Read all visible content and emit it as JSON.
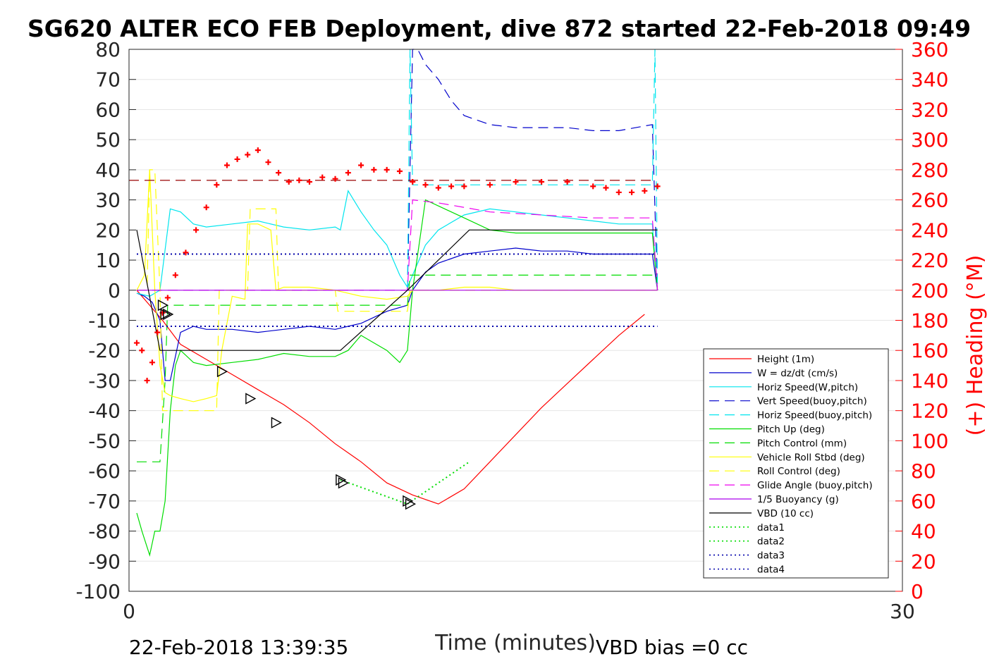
{
  "chart_data": {
    "type": "line",
    "title": "SG620 ALTER ECO FEB Deployment, dive 872 started 22-Feb-2018 09:49",
    "xlabel": "Time (minutes)",
    "ylabel": "",
    "y2label": "(+) Heading (°M)",
    "xlim": [
      0,
      30
    ],
    "ylim": [
      -100,
      80
    ],
    "y2lim": [
      0,
      360
    ],
    "x_ticks": [
      "0",
      "30"
    ],
    "y_ticks": [
      "80",
      "70",
      "60",
      "50",
      "40",
      "30",
      "20",
      "10",
      "0",
      "-10",
      "-20",
      "-30",
      "-40",
      "-50",
      "-60",
      "-70",
      "-80",
      "-90",
      "-100"
    ],
    "y2_ticks": [
      "360",
      "340",
      "320",
      "300",
      "280",
      "260",
      "240",
      "220",
      "200",
      "180",
      "160",
      "140",
      "120",
      "100",
      "80",
      "60",
      "40",
      "20",
      "0"
    ],
    "grid": true,
    "legend_position": "bottom-right",
    "footer_left": "22-Feb-2018 13:39:35",
    "footer_right": "VBD bias =0 cc",
    "series": [
      {
        "name": "Height (1m)",
        "color": "#ff0000",
        "style": "solid",
        "x": [
          0.3,
          0.8,
          1.3,
          2.0,
          3.0,
          4.0,
          5.0,
          6.0,
          7.0,
          8.0,
          9.0,
          10.0,
          11.0,
          12.0,
          13.0,
          14.0,
          15.0,
          16.0,
          17.0,
          18.0,
          19.0,
          20.0
        ],
        "y": [
          0,
          -5,
          -10,
          -18,
          -23,
          -28,
          -33,
          -38,
          -44,
          -51,
          -57,
          -64,
          -68,
          -71,
          -66,
          -57,
          -48,
          -39,
          -31,
          -23,
          -15,
          -8
        ]
      },
      {
        "name": "W = dz/dt (cm/s)",
        "color": "#0000cc",
        "style": "solid",
        "x": [
          0.3,
          0.6,
          0.9,
          1.2,
          1.4,
          1.6,
          2.0,
          2.5,
          3.0,
          4.0,
          5.0,
          6.0,
          7.0,
          8.0,
          8.5,
          9.0,
          10.0,
          10.8,
          11.0,
          11.5,
          12.0,
          13.0,
          14.0,
          15.0,
          16.0,
          17.0,
          18.0,
          19.0,
          20.3,
          20.5
        ],
        "y": [
          -1,
          -2,
          -4,
          -10,
          -30,
          -30,
          -14,
          -12,
          -13,
          -13,
          -14,
          -13,
          -12,
          -13,
          -12,
          -11,
          -7,
          -5,
          0,
          6,
          9,
          12,
          13,
          14,
          13,
          13,
          12,
          12,
          12,
          0
        ]
      },
      {
        "name": "Horiz Speed(W,pitch)",
        "color": "#00e5ee",
        "style": "solid",
        "x": [
          0.3,
          0.8,
          1.2,
          1.6,
          2.0,
          2.5,
          3.0,
          4.0,
          5.0,
          6.0,
          7.0,
          8.0,
          8.2,
          8.5,
          9.0,
          9.5,
          10.0,
          10.5,
          10.8,
          11.0,
          11.5,
          12.0,
          13.0,
          14.0,
          15.0,
          16.0,
          17.0,
          18.0,
          19.0,
          20.3,
          20.5
        ],
        "y": [
          -1,
          -2,
          0,
          27,
          26,
          22,
          21,
          22,
          23,
          21,
          20,
          21,
          20,
          33,
          26,
          20,
          15,
          5,
          1,
          5,
          15,
          20,
          25,
          27,
          26,
          25,
          24,
          23,
          22,
          22,
          0
        ]
      },
      {
        "name": "Vert Speed(buoy,pitch)",
        "color": "#0000cc",
        "style": "dashed",
        "x": [
          10.8,
          11.0,
          11.2,
          11.5,
          12.0,
          12.5,
          13.0,
          14.0,
          15.0,
          16.0,
          17.0,
          18.0,
          19.0,
          20.3,
          20.5
        ],
        "y": [
          0,
          80,
          80,
          75,
          70,
          63,
          58,
          55,
          54,
          54,
          54,
          53,
          53,
          55,
          0
        ]
      },
      {
        "name": "Horiz Speed(buoy,pitch)",
        "color": "#00e5ee",
        "style": "dashed",
        "x": [
          10.8,
          10.9,
          11.0,
          20.3,
          20.4,
          20.5
        ],
        "y": [
          0,
          80,
          35,
          35,
          80,
          0
        ]
      },
      {
        "name": "Pitch Up (deg)",
        "color": "#00dd00",
        "style": "solid",
        "x": [
          0.3,
          0.5,
          0.8,
          1.0,
          1.2,
          1.4,
          1.6,
          1.8,
          2.0,
          2.5,
          3.0,
          4.0,
          5.0,
          6.0,
          7.0,
          8.0,
          8.5,
          9.0,
          10.0,
          10.5,
          10.8,
          11.0,
          11.5,
          12.0,
          13.0,
          14.0,
          15.0,
          16.0,
          17.0,
          18.0,
          19.0,
          20.3,
          20.5
        ],
        "y": [
          -74,
          -80,
          -88,
          -80,
          -80,
          -70,
          -40,
          -25,
          -20,
          -24,
          -25,
          -24,
          -23,
          -21,
          -22,
          -22,
          -20,
          -15,
          -20,
          -24,
          -20,
          0,
          30,
          28,
          24,
          20,
          19,
          19,
          19,
          19,
          19,
          19,
          0
        ]
      },
      {
        "name": "Pitch Control (mm)",
        "color": "#00dd00",
        "style": "dashed",
        "x": [
          0.3,
          1.2,
          1.4,
          1.5,
          10.8,
          10.9,
          20.5
        ],
        "y": [
          -57,
          -57,
          -30,
          -5,
          -5,
          5,
          5
        ]
      },
      {
        "name": "Vehicle Roll Stbd (deg)",
        "color": "#ffff00",
        "style": "solid",
        "x": [
          0.3,
          0.6,
          0.8,
          1.0,
          1.2,
          1.4,
          1.6,
          2.0,
          2.5,
          3.0,
          3.4,
          3.6,
          4.0,
          4.5,
          4.6,
          5.0,
          5.5,
          5.7,
          6.0,
          7.0,
          8.0,
          9.0,
          10.0,
          10.8,
          11.0,
          12.0,
          13.0,
          14.0,
          15.0,
          16.0,
          17.0,
          18.0,
          19.0,
          20.3,
          20.5
        ],
        "y": [
          0,
          5,
          40,
          0,
          -25,
          -34,
          -35,
          -36,
          -37,
          -36,
          -35,
          -20,
          -2,
          -3,
          22,
          22,
          20,
          0,
          1,
          1,
          0,
          -2,
          -3,
          -2,
          0,
          0,
          1,
          1,
          0,
          0,
          0,
          0,
          0,
          0,
          0
        ]
      },
      {
        "name": "Roll Control (deg)",
        "color": "#ffff00",
        "style": "dashed",
        "x": [
          0.3,
          0.7,
          0.8,
          1.0,
          1.2,
          1.3,
          1.4,
          2.0,
          3.4,
          3.5,
          4.6,
          4.7,
          5.7,
          5.8,
          8.0,
          8.1,
          10.8,
          10.9,
          20.5
        ],
        "y": [
          0,
          0,
          40,
          40,
          0,
          -40,
          -40,
          -40,
          -40,
          0,
          0,
          27,
          27,
          0,
          0,
          -7,
          -7,
          0,
          0
        ]
      },
      {
        "name": "Glide Angle (buoy,pitch)",
        "color": "#ee00ee",
        "style": "dashed",
        "x": [
          0.3,
          10.8,
          11.0,
          12.0,
          14.0,
          16.0,
          18.0,
          20.3,
          20.5
        ],
        "y": [
          0,
          0,
          30,
          29,
          26,
          25,
          24,
          24,
          0
        ]
      },
      {
        "name": "1/5 Buoyancy (g)",
        "color": "#aa00ee",
        "style": "solid",
        "x": [
          0.3,
          20.5
        ],
        "y": [
          0,
          0
        ]
      },
      {
        "name": "VBD (10 cc)",
        "color": "#000000",
        "style": "solid",
        "x": [
          0.3,
          1.2,
          8.2,
          10.8,
          13.2,
          20.5
        ],
        "y": [
          20,
          -20,
          -20,
          0,
          20,
          20
        ]
      },
      {
        "name": "data1",
        "color": "#00dd00",
        "style": "dotted",
        "x": [
          10.8,
          13.2
        ],
        "y": [
          -71,
          -57
        ]
      },
      {
        "name": "data2",
        "color": "#00dd00",
        "style": "dotted",
        "x": [
          8.2,
          10.8
        ],
        "y": [
          -63,
          -71
        ]
      },
      {
        "name": "data3",
        "color": "#0000aa",
        "style": "dotted",
        "x": [
          0.3,
          20.5
        ],
        "y": [
          12,
          12
        ]
      },
      {
        "name": "data4",
        "color": "#0000aa",
        "style": "dotted",
        "x": [
          0.3,
          20.5
        ],
        "y": [
          -12,
          -12
        ]
      }
    ],
    "heading_reference": {
      "color": "#990000",
      "style": "dashed",
      "heading": 273
    },
    "heading_points": {
      "color": "#ff0000",
      "marker": "+",
      "x": [
        0.3,
        0.5,
        0.7,
        0.9,
        1.1,
        1.3,
        1.5,
        1.8,
        2.2,
        2.6,
        3.0,
        3.4,
        3.8,
        4.2,
        4.6,
        5.0,
        5.4,
        5.8,
        6.2,
        6.6,
        7.0,
        7.5,
        8.0,
        8.5,
        9.0,
        9.5,
        10.0,
        10.5,
        11.0,
        11.5,
        12.0,
        12.5,
        13.0,
        14.0,
        15.0,
        16.0,
        17.0,
        18.0,
        18.5,
        19.0,
        19.5,
        20.0,
        20.5
      ],
      "y": [
        165,
        160,
        140,
        152,
        172,
        185,
        195,
        210,
        225,
        240,
        255,
        270,
        283,
        287,
        290,
        293,
        285,
        278,
        272,
        273,
        272,
        275,
        274,
        278,
        283,
        280,
        280,
        279,
        272,
        270,
        268,
        269,
        269,
        270,
        272,
        272,
        272,
        269,
        268,
        265,
        265,
        266,
        269
      ]
    },
    "triangle_markers": {
      "x": [
        1.3,
        1.4,
        1.5,
        3.6,
        4.7,
        5.7,
        8.2,
        8.3,
        10.8,
        10.9
      ],
      "y": [
        -5,
        -8,
        -8,
        -27,
        -36,
        -44,
        -63,
        -64,
        -70,
        -71
      ]
    }
  }
}
